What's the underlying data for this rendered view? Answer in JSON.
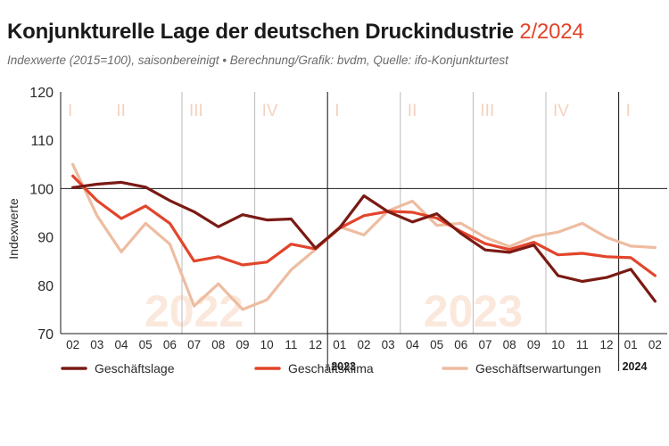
{
  "header": {
    "title": "Konjunkturelle Lage der deutschen Druckindustrie",
    "title_suffix": "2/2024",
    "subtitle": "Indexwerte (2015=100), saisonbereinigt  •  Berechnung/Grafik: bvdm, Quelle: ifo-Konjunkturtest"
  },
  "colors": {
    "accent": "#e2452b",
    "geschaeftslage": "#7a1a14",
    "geschaeftsklima": "#e2452b",
    "geschaeftserwartungen": "#eebca0"
  },
  "chart_data": {
    "type": "line",
    "title": "Konjunkturelle Lage der deutschen Druckindustrie 2/2024",
    "ylabel": "Indexwerte",
    "ylim": [
      70,
      120
    ],
    "yticks": [
      70,
      80,
      90,
      100,
      110,
      120
    ],
    "categories": [
      "02",
      "03",
      "04",
      "05",
      "06",
      "07",
      "08",
      "09",
      "10",
      "11",
      "12",
      "01",
      "02",
      "03",
      "04",
      "05",
      "06",
      "07",
      "08",
      "09",
      "10",
      "11",
      "12",
      "01",
      "02"
    ],
    "quarter_labels": [
      "I",
      "II",
      "III",
      "IV",
      "I",
      "II",
      "III",
      "IV",
      "I"
    ],
    "year_watermarks": [
      "2022",
      "2023"
    ],
    "year_labels": [
      "2023",
      "2024"
    ],
    "reference_line": 100,
    "series": [
      {
        "name": "Geschäftslage",
        "values": [
          100.2,
          100.9,
          101.3,
          100.3,
          97.5,
          95.2,
          92.1,
          94.6,
          93.5,
          93.7,
          87.7,
          91.9,
          98.5,
          95.2,
          93.1,
          94.8,
          90.7,
          87.3,
          86.8,
          88.3,
          82.0,
          80.8,
          81.6,
          83.3,
          76.7
        ]
      },
      {
        "name": "Geschäftsklima",
        "values": [
          102.6,
          97.5,
          93.8,
          96.4,
          92.8,
          85.0,
          85.9,
          84.2,
          84.8,
          88.5,
          87.5,
          91.8,
          94.4,
          95.3,
          95.1,
          93.9,
          91.1,
          88.6,
          87.4,
          88.9,
          86.3,
          86.6,
          85.9,
          85.7,
          82.0
        ]
      },
      {
        "name": "Geschäftserwartungen",
        "values": [
          105.0,
          94.4,
          86.9,
          92.8,
          88.5,
          75.7,
          80.3,
          75.0,
          77.0,
          83.2,
          87.4,
          92.1,
          90.4,
          95.4,
          97.4,
          92.4,
          92.8,
          89.9,
          88.0,
          90.1,
          91.0,
          92.8,
          89.9,
          88.1,
          87.8
        ]
      }
    ],
    "legend_position": "bottom",
    "grid": "vertical quarter separators, y gridlines not shown"
  }
}
